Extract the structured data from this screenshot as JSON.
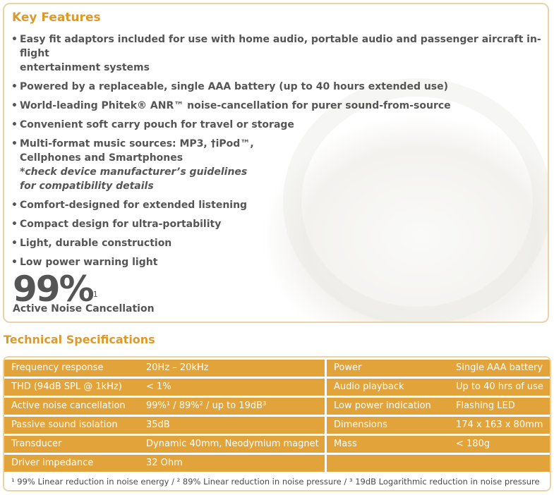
{
  "key_features": {
    "title": "Key Features",
    "items": [
      {
        "line1": "Easy fit adaptors included for use with home audio, portable audio and passenger aircraft in-flight",
        "line2": "entertainment systems"
      },
      {
        "line1": "Powered by a replaceable, single AAA battery (up to 40 hours extended use)"
      },
      {
        "line1": "World-leading Phitek® ANR™ noise-cancellation for purer sound-from-source"
      },
      {
        "line1": "Convenient soft carry pouch for travel or storage"
      },
      {
        "line1": "Multi-format music sources: MP3, †iPod™,",
        "line2": "Cellphones and Smartphones",
        "note1": "*check device manufacturer’s guidelines",
        "note2": "for compatibility details"
      },
      {
        "line1": "Comfort-designed for extended listening"
      },
      {
        "line1": "Compact design for ultra-portability"
      },
      {
        "line1": "Light, durable construction"
      },
      {
        "line1": "Low power warning light"
      }
    ],
    "stat": {
      "value": "99%",
      "sup": "1",
      "label": "Active Noise Cancellation"
    }
  },
  "technical_specifications": {
    "title": "Technical Specifications",
    "left": [
      {
        "label": "Frequency response",
        "value": "20Hz – 20kHz"
      },
      {
        "label": "THD (94dB SPL @ 1kHz)",
        "value": "< 1%"
      },
      {
        "label": "Active noise cancellation",
        "value": "99%¹ / 89%² / up to 19dB³"
      },
      {
        "label": "Passive sound isolation",
        "value": "35dB"
      },
      {
        "label": "Transducer",
        "value": "Dynamic 40mm, Neodymium magnet"
      },
      {
        "label": "Driver impedance",
        "value": "32 Ohm"
      }
    ],
    "right": [
      {
        "label": "Power",
        "value": "Single AAA battery"
      },
      {
        "label": "Audio playback",
        "value": "Up to 40 hrs of use"
      },
      {
        "label": "Low power indication",
        "value": "Flashing LED"
      },
      {
        "label": "Dimensions",
        "value": "174 x 163 x 80mm"
      },
      {
        "label": "Mass",
        "value": "< 180g"
      },
      {
        "label": "",
        "value": ""
      }
    ],
    "footnote": "¹ 99% Linear reduction in noise energy / ² 89% Linear reduction in noise pressure / ³ 19dB Logarithmic reduction in noise pressure"
  },
  "colors": {
    "accent": "#dc9a2b",
    "row_fill": "#e2a33b",
    "border": "#ead4a6",
    "text": "#555555"
  }
}
